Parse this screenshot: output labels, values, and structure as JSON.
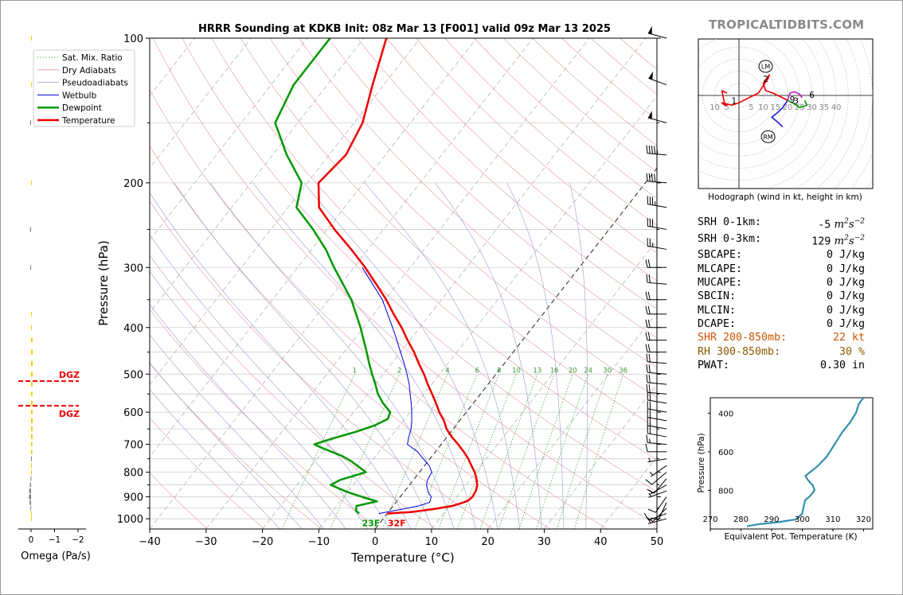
{
  "title": "HRRR Sounding at KDKB Init: 08z Mar 13 [F001] valid 09z Mar 13 2025",
  "brand": "TROPICALTIDBITS.COM",
  "colors": {
    "temperature": "#ee0000",
    "dewpoint": "#009900",
    "wetbulb": "#0000dd",
    "dry_adiabat": "#e39a9a",
    "moist_adiabat": "#9a9ad6",
    "mixing_ratio": "#3a9a3a",
    "shr": "#cc5500",
    "rh": "#8b5a00",
    "omega_up": "#f0d000",
    "omega_down": "#808080",
    "theta_e": "#3390b0",
    "hodo_low": "#ee0000",
    "hodo_mid": "#1b1bdd",
    "hodo_high": "#009900",
    "hodo_top": "#bb22bb",
    "dgz": "#ee0000"
  },
  "chart_data": [
    {
      "type": "line",
      "name": "skew-t",
      "title": "HRRR Sounding at KDKB Init: 08z Mar 13 [F001] valid 09z Mar 13 2025",
      "xlabel": "Temperature (°C)",
      "ylabel": "Pressure (hPa)",
      "xlim": [
        -40,
        50
      ],
      "ylim": [
        1050,
        100
      ],
      "log_y": true,
      "skew": true,
      "x_ticks": [
        "−40",
        "−30",
        "−20",
        "−10",
        "0",
        "10",
        "20",
        "30",
        "40",
        "50"
      ],
      "y_ticks": [
        "100",
        "200",
        "300",
        "400",
        "500",
        "600",
        "700",
        "800",
        "900",
        "1000"
      ],
      "legend": {
        "placement": "top-left",
        "entries": [
          "Sat. Mix. Ratio",
          "Dry Adiabats",
          "Pseudoadiabats",
          "Wetbulb",
          "Dewpoint",
          "Temperature"
        ]
      },
      "series": [
        {
          "name": "Temperature",
          "p": [
            975,
            968,
            955,
            940,
            925,
            915,
            900,
            875,
            850,
            825,
            800,
            775,
            750,
            725,
            700,
            675,
            650,
            625,
            600,
            575,
            550,
            525,
            500,
            475,
            450,
            425,
            400,
            375,
            350,
            325,
            300,
            275,
            250,
            225,
            200,
            175,
            150,
            125,
            100
          ],
          "t": [
            0.0,
            4.0,
            7.5,
            10.5,
            12.0,
            12.6,
            12.8,
            12.6,
            12.0,
            11.0,
            9.8,
            8.3,
            6.8,
            5.0,
            3.0,
            0.8,
            -1.2,
            -2.8,
            -4.8,
            -6.6,
            -8.6,
            -10.7,
            -12.8,
            -15.2,
            -17.6,
            -20.4,
            -23.2,
            -26.5,
            -29.8,
            -33.7,
            -38.0,
            -43.0,
            -48.7,
            -54.5,
            -58.0,
            -57.0,
            -58.5,
            -62.0,
            -66.0
          ]
        },
        {
          "name": "Dewpoint",
          "p": [
            975,
            960,
            940,
            920,
            905,
            880,
            850,
            830,
            800,
            775,
            760,
            740,
            725,
            710,
            700,
            680,
            660,
            640,
            620,
            600,
            575,
            550,
            525,
            500,
            475,
            450,
            400,
            350,
            300,
            275,
            250,
            225,
            200,
            175,
            150,
            125,
            100
          ],
          "t": [
            -5.0,
            -6.0,
            -6.5,
            -3.5,
            -6.0,
            -10.0,
            -14.0,
            -13.0,
            -9.5,
            -12.0,
            -13.5,
            -16.0,
            -18.5,
            -21.0,
            -22.5,
            -20.0,
            -17.0,
            -14.5,
            -13.0,
            -13.5,
            -16.0,
            -18.2,
            -20.0,
            -22.0,
            -24.0,
            -26.0,
            -30.5,
            -36.0,
            -43.5,
            -47.5,
            -52.5,
            -58.5,
            -61.0,
            -67.5,
            -74.0,
            -76.0,
            -76.0
          ]
        },
        {
          "name": "Wetbulb",
          "p": [
            975,
            955,
            940,
            925,
            900,
            880,
            850,
            830,
            800,
            775,
            750,
            725,
            700,
            675,
            650,
            625,
            600,
            575,
            550,
            525,
            500,
            475,
            450,
            425,
            400,
            350,
            300
          ],
          "t": [
            -1.5,
            2.0,
            4.5,
            6.0,
            5.5,
            4.3,
            3.0,
            2.5,
            2.2,
            0.8,
            -1.2,
            -3.2,
            -6.0,
            -6.8,
            -7.5,
            -8.5,
            -9.7,
            -11.0,
            -12.5,
            -14.0,
            -15.8,
            -17.8,
            -20.0,
            -22.3,
            -24.8,
            -30.5,
            -38.5
          ]
        }
      ],
      "surface_labels": {
        "dewpoint": "23F",
        "temperature": "32F"
      },
      "mixing_ratio_labels": [
        "1",
        "2",
        "4",
        "6",
        "8",
        "10",
        "13",
        "16",
        "20",
        "24",
        "30",
        "36"
      ],
      "dgz_labels": [
        "DGZ",
        "DGZ"
      ]
    },
    {
      "type": "bar",
      "name": "omega",
      "xlabel": "Omega (Pa/s)",
      "x_ticks": [
        "0",
        "−1",
        "−2"
      ],
      "xlim": [
        0.2,
        -2.2
      ],
      "p": [
        1000,
        975,
        950,
        925,
        900,
        875,
        850,
        825,
        800,
        775,
        750,
        725,
        700,
        675,
        650,
        625,
        600,
        575,
        550,
        525,
        500,
        475,
        450,
        425,
        400,
        375,
        300,
        250,
        200,
        150,
        125,
        100
      ],
      "values": [
        -0.01,
        -0.02,
        0.03,
        0.06,
        0.09,
        0.08,
        0.05,
        0.02,
        -0.03,
        -0.02,
        0.0,
        -0.05,
        -0.05,
        -0.06,
        -0.06,
        -0.07,
        -0.06,
        -0.07,
        -0.06,
        -0.06,
        -0.07,
        -0.07,
        -0.07,
        -0.06,
        -0.04,
        -0.01,
        0.03,
        0.04,
        -0.04,
        0.04,
        -0.01,
        -0.01
      ]
    },
    {
      "type": "line",
      "name": "hodograph",
      "title": "Hodograph (wind in kt, height in km)",
      "ring_labels": [
        "10",
        "5",
        "5",
        "10",
        "15",
        "20",
        "25",
        "30",
        "35",
        "40"
      ],
      "height_labels": [
        "1",
        "2",
        "3",
        "6",
        "9"
      ],
      "markers": [
        "LM",
        "RM"
      ],
      "series": [
        {
          "name": "0-3 km",
          "u": [
            -5,
            -7,
            -6,
            -5,
            -6,
            -7,
            -3,
            0,
            4,
            8,
            10,
            12,
            12.5,
            10,
            11,
            14,
            18,
            20
          ],
          "v": [
            1,
            2,
            -3,
            -4,
            -4,
            -3,
            -4,
            -3,
            -1,
            1,
            4,
            7,
            8.5,
            5,
            2,
            1,
            -1,
            -2
          ]
        },
        {
          "name": "3-6 km",
          "u": [
            20,
            18,
            16,
            13.5,
            16,
            18
          ],
          "v": [
            -2,
            -5,
            -7,
            -9,
            -11,
            -13
          ]
        },
        {
          "name": "6-9 km",
          "u": [
            20,
            22,
            25,
            28,
            27
          ],
          "v": [
            -2,
            -3,
            -5,
            -4,
            -2
          ]
        },
        {
          "name": "9+ km",
          "u": [
            20,
            21,
            23,
            25,
            26
          ],
          "v": [
            -2,
            1,
            1.5,
            0.5,
            -1
          ]
        }
      ]
    },
    {
      "type": "line",
      "name": "theta-e",
      "xlabel": "Equivalent Pot. Temperature (K)",
      "ylabel": "Pressure (hPa)",
      "xlim": [
        270,
        323
      ],
      "x_ticks": [
        "270",
        "280",
        "290",
        "300",
        "310",
        "320"
      ],
      "y_ticks": [
        "400",
        "600",
        "800"
      ],
      "ylim": [
        1000,
        320
      ],
      "p": [
        985,
        975,
        965,
        950,
        920,
        880,
        850,
        830,
        800,
        775,
        750,
        725,
        700,
        675,
        650,
        625,
        600,
        575,
        550,
        500,
        450,
        400,
        350,
        320
      ],
      "theta_e": [
        282,
        286,
        292,
        298,
        300,
        300.5,
        301,
        302.5,
        304,
        303.5,
        302,
        301,
        303,
        305,
        306.5,
        308,
        309,
        310,
        311,
        313,
        315.5,
        317.5,
        318.5,
        320
      ]
    }
  ],
  "stats": [
    {
      "label": "SRH 0-1km:",
      "value": "-5",
      "unit": "m2s-2",
      "color": "#000000"
    },
    {
      "label": "SRH 0-3km:",
      "value": "129",
      "unit": "m2s-2",
      "color": "#000000"
    },
    {
      "label": "SBCAPE:",
      "value": "0 J/kg",
      "color": "#000000"
    },
    {
      "label": "MLCAPE:",
      "value": "0 J/kg",
      "color": "#000000"
    },
    {
      "label": "MUCAPE:",
      "value": "0 J/kg",
      "color": "#000000"
    },
    {
      "label": "SBCIN:",
      "value": "0 J/kg",
      "color": "#000000"
    },
    {
      "label": "MLCIN:",
      "value": "0 J/kg",
      "color": "#000000"
    },
    {
      "label": "DCAPE:",
      "value": "0 J/kg",
      "color": "#000000"
    },
    {
      "label": "SHR 200-850mb:",
      "value": "22 kt",
      "color": "#cc5500"
    },
    {
      "label": "RH 300-850mb:",
      "value": "30 %",
      "color": "#8b5a00"
    },
    {
      "label": "PWAT:",
      "value": "0.30 in",
      "color": "#000000"
    }
  ],
  "wind_barbs": {
    "p": [
      100,
      125,
      150,
      175,
      200,
      225,
      250,
      275,
      300,
      325,
      350,
      375,
      400,
      425,
      450,
      475,
      500,
      525,
      550,
      575,
      600,
      625,
      650,
      675,
      700,
      725,
      750,
      775,
      800,
      825,
      850,
      875,
      900,
      925,
      950,
      975,
      1000
    ],
    "dir_deg": [
      285,
      290,
      285,
      275,
      275,
      280,
      280,
      280,
      270,
      275,
      270,
      270,
      270,
      270,
      270,
      275,
      275,
      275,
      275,
      280,
      280,
      280,
      280,
      280,
      275,
      270,
      260,
      235,
      230,
      220,
      240,
      250,
      215,
      205,
      225,
      250,
      255
    ],
    "speed_kt": [
      50,
      50,
      50,
      45,
      40,
      35,
      30,
      25,
      20,
      20,
      20,
      20,
      20,
      20,
      20,
      20,
      20,
      20,
      20,
      20,
      20,
      20,
      20,
      20,
      15,
      10,
      5,
      5,
      10,
      10,
      5,
      5,
      10,
      10,
      10,
      10,
      5
    ]
  }
}
